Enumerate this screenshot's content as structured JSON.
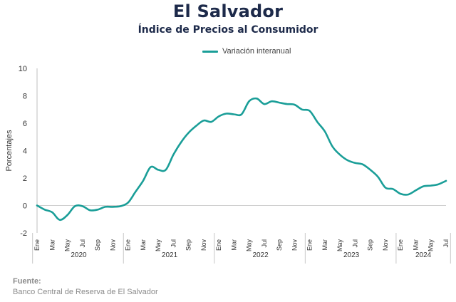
{
  "header": {
    "title": "El Salvador",
    "subtitle": "Índice de Precios al Consumidor"
  },
  "source": {
    "label": "Fuente:",
    "text": "Banco Central de Reserva de El Salvador"
  },
  "chart_data": {
    "type": "line",
    "title": "El Salvador",
    "subtitle": "Índice de Precios al Consumidor",
    "ylabel": "Porcentajes",
    "xlabel": "",
    "ylim": [
      -2,
      10
    ],
    "yticks": [
      -2,
      0,
      2,
      4,
      6,
      8,
      10
    ],
    "grid": false,
    "legend_position": "top-center",
    "month_tick_labels": [
      "Ene",
      "Mar",
      "May",
      "Jul",
      "Sep",
      "Nov"
    ],
    "year_groups": [
      {
        "year": "2020",
        "months": 12
      },
      {
        "year": "2021",
        "months": 12
      },
      {
        "year": "2022",
        "months": 12
      },
      {
        "year": "2023",
        "months": 12
      },
      {
        "year": "2024",
        "months": 7
      }
    ],
    "series": [
      {
        "name": "Variación interanual",
        "color": "#1a9e98",
        "x": [
          "2020-01",
          "2020-02",
          "2020-03",
          "2020-04",
          "2020-05",
          "2020-06",
          "2020-07",
          "2020-08",
          "2020-09",
          "2020-10",
          "2020-11",
          "2020-12",
          "2021-01",
          "2021-02",
          "2021-03",
          "2021-04",
          "2021-05",
          "2021-06",
          "2021-07",
          "2021-08",
          "2021-09",
          "2021-10",
          "2021-11",
          "2021-12",
          "2022-01",
          "2022-02",
          "2022-03",
          "2022-04",
          "2022-05",
          "2022-06",
          "2022-07",
          "2022-08",
          "2022-09",
          "2022-10",
          "2022-11",
          "2022-12",
          "2023-01",
          "2023-02",
          "2023-03",
          "2023-04",
          "2023-05",
          "2023-06",
          "2023-07",
          "2023-08",
          "2023-09",
          "2023-10",
          "2023-11",
          "2023-12",
          "2024-01",
          "2024-02",
          "2024-03",
          "2024-04",
          "2024-05",
          "2024-06",
          "2024-07"
        ],
        "values": [
          0.0,
          -0.3,
          -0.5,
          -1.05,
          -0.7,
          -0.05,
          -0.05,
          -0.35,
          -0.3,
          -0.1,
          -0.1,
          -0.05,
          0.2,
          1.0,
          1.8,
          2.8,
          2.6,
          2.6,
          3.7,
          4.6,
          5.3,
          5.8,
          6.2,
          6.1,
          6.5,
          6.7,
          6.65,
          6.65,
          7.6,
          7.8,
          7.4,
          7.6,
          7.5,
          7.4,
          7.35,
          7.0,
          6.9,
          6.1,
          5.4,
          4.3,
          3.7,
          3.3,
          3.1,
          3.0,
          2.6,
          2.1,
          1.3,
          1.2,
          0.85,
          0.8,
          1.1,
          1.4,
          1.45,
          1.55,
          1.8
        ]
      }
    ]
  }
}
